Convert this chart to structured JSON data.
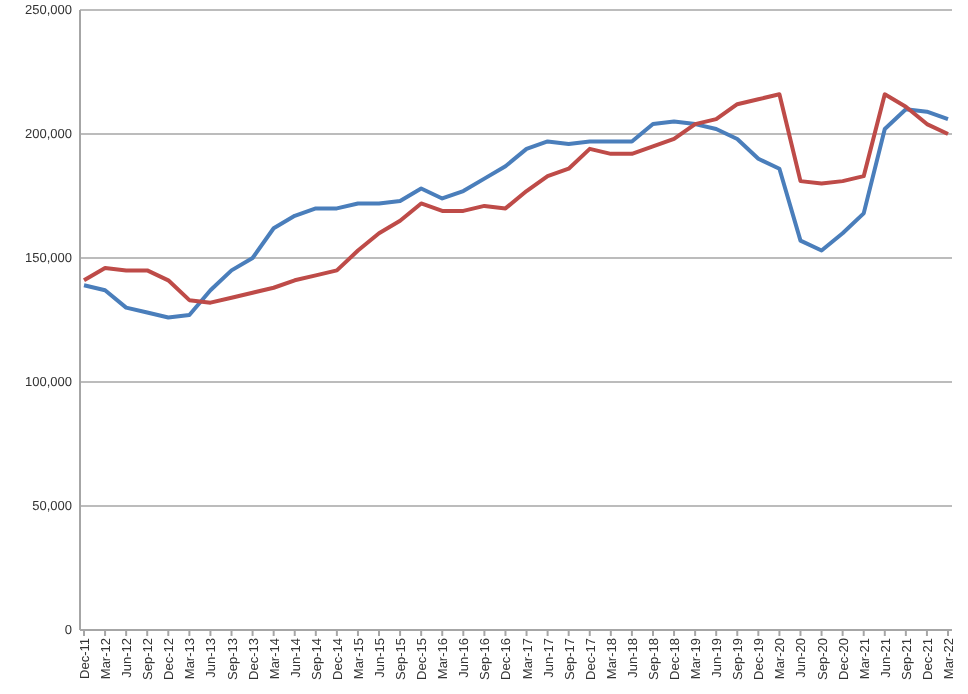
{
  "chart_data": {
    "type": "line",
    "categories": [
      "Dec-11",
      "Mar-12",
      "Jun-12",
      "Sep-12",
      "Dec-12",
      "Mar-13",
      "Jun-13",
      "Sep-13",
      "Dec-13",
      "Mar-14",
      "Jun-14",
      "Sep-14",
      "Dec-14",
      "Mar-15",
      "Jun-15",
      "Sep-15",
      "Dec-15",
      "Mar-16",
      "Jun-16",
      "Sep-16",
      "Dec-16",
      "Mar-17",
      "Jun-17",
      "Sep-17",
      "Dec-17",
      "Mar-18",
      "Jun-18",
      "Sep-18",
      "Dec-18",
      "Mar-19",
      "Jun-19",
      "Sep-19",
      "Dec-19",
      "Mar-20",
      "Jun-20",
      "Sep-20",
      "Dec-20",
      "Mar-21",
      "Jun-21",
      "Sep-21",
      "Dec-21",
      "Mar-22"
    ],
    "series": [
      {
        "color": "#4a7ebb",
        "values": [
          139000,
          137000,
          130000,
          128000,
          126000,
          127000,
          137000,
          145000,
          150000,
          162000,
          167000,
          170000,
          170000,
          172000,
          172000,
          173000,
          178000,
          174000,
          177000,
          182000,
          187000,
          194000,
          197000,
          196000,
          197000,
          197000,
          197000,
          204000,
          205000,
          204000,
          202000,
          198000,
          190000,
          186000,
          157000,
          153000,
          160000,
          168000,
          202000,
          210000,
          209000,
          206000
        ]
      },
      {
        "color": "#be4b48",
        "values": [
          141000,
          146000,
          145000,
          145000,
          141000,
          133000,
          132000,
          134000,
          136000,
          138000,
          141000,
          143000,
          145000,
          153000,
          160000,
          165000,
          172000,
          169000,
          169000,
          171000,
          170000,
          177000,
          183000,
          186000,
          194000,
          192000,
          192000,
          195000,
          198000,
          204000,
          206000,
          212000,
          214000,
          216000,
          181000,
          180000,
          181000,
          183000,
          216000,
          211000,
          204000,
          200000
        ]
      }
    ],
    "ylim": [
      0,
      250000
    ],
    "yticks": [
      {
        "value": 0,
        "label": "0"
      },
      {
        "value": 50000,
        "label": "50,000"
      },
      {
        "value": 100000,
        "label": "100,000"
      },
      {
        "value": 150000,
        "label": "150,000"
      },
      {
        "value": 200000,
        "label": "200,000"
      },
      {
        "value": 250000,
        "label": "250,000"
      }
    ],
    "grid": "y",
    "marker": "none",
    "line_style": "solid"
  }
}
